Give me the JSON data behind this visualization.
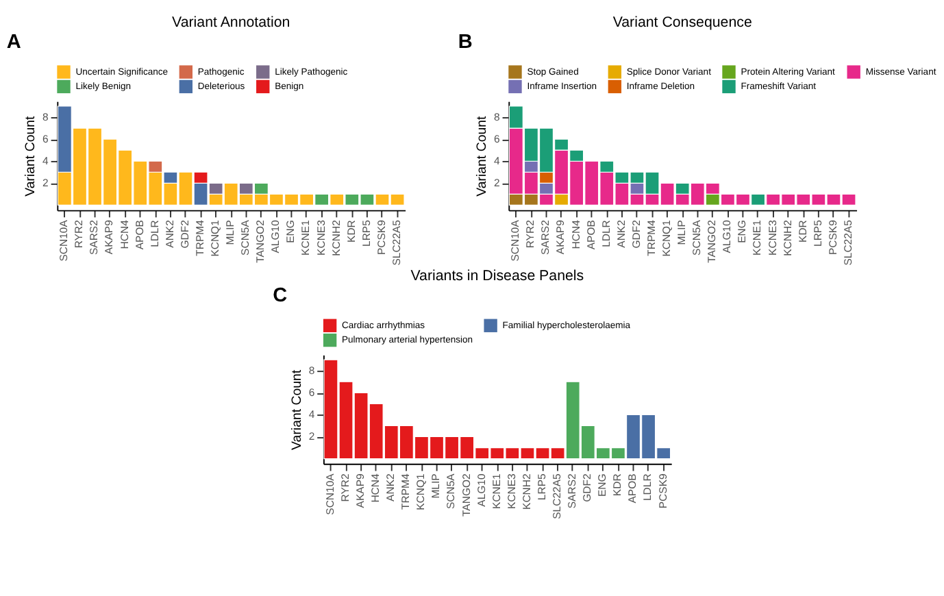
{
  "chart_data": [
    {
      "type": "bar",
      "stacked": true,
      "title": "Variant Annotation",
      "ylabel": "Variant Count",
      "annotations": [
        "A"
      ],
      "legend": "top",
      "grid": false,
      "categories": [
        "SCN10A",
        "RYR2",
        "SARS2",
        "AKAP9",
        "HCN4",
        "APOB",
        "LDLR",
        "ANK2",
        "GDF2",
        "TRPM4",
        "KCNQ1",
        "MLIP",
        "SCN5A",
        "TANGO2",
        "ALG10",
        "ENG",
        "KCNE1",
        "KCNE3",
        "KCNH2",
        "KDR",
        "LRP5",
        "PCSK9",
        "SLC22A5"
      ],
      "ylim": [
        -0.45,
        9.45
      ],
      "yticks": [
        2,
        4,
        6,
        8
      ],
      "series": [
        {
          "name": "Uncertain Significance",
          "color": "#ffb81c",
          "values": [
            3,
            7,
            7,
            6,
            5,
            4,
            3,
            2,
            3,
            null,
            1,
            2,
            1,
            1,
            1,
            1,
            1,
            null,
            1,
            null,
            null,
            1,
            1
          ]
        },
        {
          "name": "Pathogenic",
          "color": "#d3694a",
          "values": [
            null,
            null,
            null,
            null,
            null,
            null,
            1,
            null,
            null,
            null,
            null,
            null,
            null,
            null,
            null,
            null,
            null,
            null,
            null,
            null,
            null,
            null,
            null
          ]
        },
        {
          "name": "Likely Pathogenic",
          "color": "#7b6c8a",
          "values": [
            null,
            null,
            null,
            null,
            null,
            null,
            null,
            null,
            null,
            null,
            1,
            null,
            1,
            null,
            null,
            null,
            null,
            null,
            null,
            null,
            null,
            null,
            null
          ]
        },
        {
          "name": "Likely Benign",
          "color": "#4daa5c",
          "values": [
            null,
            null,
            null,
            null,
            null,
            null,
            null,
            null,
            null,
            null,
            null,
            null,
            null,
            1,
            null,
            null,
            null,
            1,
            null,
            1,
            1,
            null,
            null
          ]
        },
        {
          "name": "Deleterious",
          "color": "#4a6fa5",
          "values": [
            6,
            null,
            null,
            null,
            null,
            null,
            null,
            1,
            null,
            2,
            null,
            null,
            null,
            null,
            null,
            null,
            null,
            null,
            null,
            null,
            null,
            null,
            null
          ]
        },
        {
          "name": "Benign",
          "color": "#e41a1c",
          "values": [
            null,
            null,
            null,
            null,
            null,
            null,
            null,
            null,
            null,
            1,
            null,
            null,
            null,
            null,
            null,
            null,
            null,
            null,
            null,
            null,
            null,
            null,
            null
          ]
        }
      ]
    },
    {
      "type": "bar",
      "stacked": true,
      "title": "Variant Consequence",
      "ylabel": "Variant Count",
      "annotations": [
        "B"
      ],
      "legend": "top",
      "grid": false,
      "categories": [
        "SCN10A",
        "RYR2",
        "SARS2",
        "AKAP9",
        "HCN4",
        "APOB",
        "LDLR",
        "ANK2",
        "GDF2",
        "TRPM4",
        "KCNQ1",
        "MLIP",
        "SCN5A",
        "TANGO2",
        "ALG10",
        "ENG",
        "KCNE1",
        "KCNE3",
        "KCNH2",
        "KDR",
        "LRP5",
        "PCSK9",
        "SLC22A5"
      ],
      "ylim": [
        -0.45,
        9.45
      ],
      "yticks": [
        2,
        4,
        6,
        8
      ],
      "series": [
        {
          "name": "Stop Gained",
          "color": "#a6761d",
          "values": [
            1,
            1,
            null,
            null,
            null,
            null,
            null,
            null,
            null,
            null,
            null,
            null,
            null,
            null,
            null,
            null,
            null,
            null,
            null,
            null,
            null,
            null,
            null
          ]
        },
        {
          "name": "Splice Donor Variant",
          "color": "#e6ab02",
          "values": [
            null,
            null,
            null,
            1,
            null,
            null,
            null,
            null,
            null,
            null,
            null,
            null,
            null,
            null,
            null,
            null,
            null,
            null,
            null,
            null,
            null,
            null,
            null
          ]
        },
        {
          "name": "Protein Altering Variant",
          "color": "#66a61e",
          "values": [
            null,
            null,
            null,
            null,
            null,
            null,
            null,
            null,
            null,
            null,
            null,
            null,
            null,
            1,
            null,
            null,
            null,
            null,
            null,
            null,
            null,
            null,
            null
          ]
        },
        {
          "name": "Missense Variant",
          "color": "#e7298a",
          "values": [
            6,
            2,
            1,
            4,
            4,
            4,
            3,
            2,
            1,
            1,
            2,
            1,
            2,
            1,
            1,
            1,
            null,
            1,
            1,
            1,
            1,
            1,
            1
          ]
        },
        {
          "name": "Inframe Insertion",
          "color": "#7570b3",
          "values": [
            null,
            1,
            1,
            null,
            null,
            null,
            null,
            null,
            1,
            null,
            null,
            null,
            null,
            null,
            null,
            null,
            null,
            null,
            null,
            null,
            null,
            null,
            null
          ]
        },
        {
          "name": "Inframe Deletion",
          "color": "#d95f02",
          "values": [
            null,
            null,
            1,
            null,
            null,
            null,
            null,
            null,
            null,
            null,
            null,
            null,
            null,
            null,
            null,
            null,
            null,
            null,
            null,
            null,
            null,
            null,
            null
          ]
        },
        {
          "name": "Frameshift Variant",
          "color": "#1b9e77",
          "values": [
            2,
            3,
            4,
            1,
            1,
            null,
            1,
            1,
            1,
            2,
            null,
            1,
            null,
            null,
            null,
            null,
            1,
            null,
            null,
            null,
            null,
            null,
            null
          ]
        }
      ]
    },
    {
      "type": "bar",
      "title": "Variants in Disease Panels",
      "ylabel": "Variant Count",
      "annotations": [
        "C"
      ],
      "legend": "top",
      "grid": false,
      "categories": [
        "SCN10A",
        "RYR2",
        "AKAP9",
        "HCN4",
        "ANK2",
        "TRPM4",
        "KCNQ1",
        "MLIP",
        "SCN5A",
        "TANGO2",
        "ALG10",
        "KCNE1",
        "KCNE3",
        "KCNH2",
        "LRP5",
        "SLC22A5",
        "SARS2",
        "GDF2",
        "ENG",
        "KDR",
        "APOB",
        "LDLR",
        "PCSK9"
      ],
      "ylim": [
        -0.45,
        9.45
      ],
      "yticks": [
        2,
        4,
        6,
        8
      ],
      "series": [
        {
          "name": "Cardiac arrhythmias",
          "color": "#e41a1c",
          "values": [
            9,
            7,
            6,
            5,
            3,
            3,
            2,
            2,
            2,
            2,
            1,
            1,
            1,
            1,
            1,
            1,
            null,
            null,
            null,
            null,
            null,
            null,
            null
          ]
        },
        {
          "name": "Familial hypercholesterolaemia",
          "color": "#4a6fa5",
          "values": [
            null,
            null,
            null,
            null,
            null,
            null,
            null,
            null,
            null,
            null,
            null,
            null,
            null,
            null,
            null,
            null,
            null,
            null,
            null,
            null,
            4,
            4,
            1
          ]
        },
        {
          "name": "Pulmonary arterial hypertension",
          "color": "#4daa5c",
          "values": [
            null,
            null,
            null,
            null,
            null,
            null,
            null,
            null,
            null,
            null,
            null,
            null,
            null,
            null,
            null,
            null,
            7,
            3,
            1,
            1,
            null,
            null,
            null
          ]
        }
      ]
    }
  ]
}
